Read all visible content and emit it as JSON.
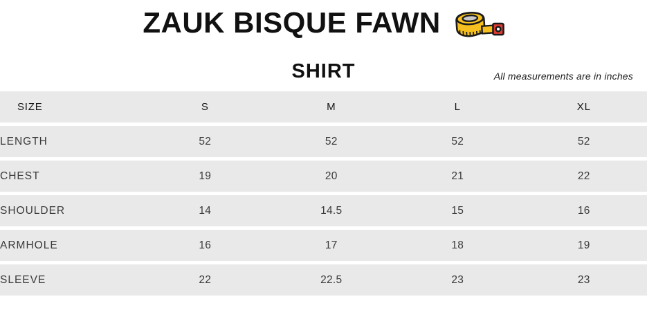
{
  "header": {
    "product_title": "ZAUK BISQUE FAWN",
    "icon": "tape-measure-icon",
    "section_title": "SHIRT",
    "units_note": "All measurements are in inches"
  },
  "colors": {
    "row_background": "#e9e9e9",
    "heading_text": "#111111",
    "body_text": "#3a3a3a",
    "tape_yellow": "#f5c01f",
    "tape_red": "#e03c31",
    "tape_inner_gray": "#c9c9c9",
    "outline_black": "#1a1a1a"
  },
  "chart_data": {
    "type": "table",
    "title": "ZAUK BISQUE FAWN",
    "subtitle": "SHIRT",
    "note": "All measurements are in inches",
    "columns": [
      "SIZE",
      "S",
      "M",
      "L",
      "XL"
    ],
    "rows": [
      {
        "label": "LENGTH",
        "values": [
          52,
          52,
          52,
          52
        ]
      },
      {
        "label": "CHEST",
        "values": [
          19,
          20,
          21,
          22
        ]
      },
      {
        "label": "SHOULDER",
        "values": [
          14,
          14.5,
          15,
          16
        ]
      },
      {
        "label": "ARMHOLE",
        "values": [
          16,
          17,
          18,
          19
        ]
      },
      {
        "label": "SLEEVE",
        "values": [
          22,
          22.5,
          23,
          23
        ]
      }
    ]
  }
}
